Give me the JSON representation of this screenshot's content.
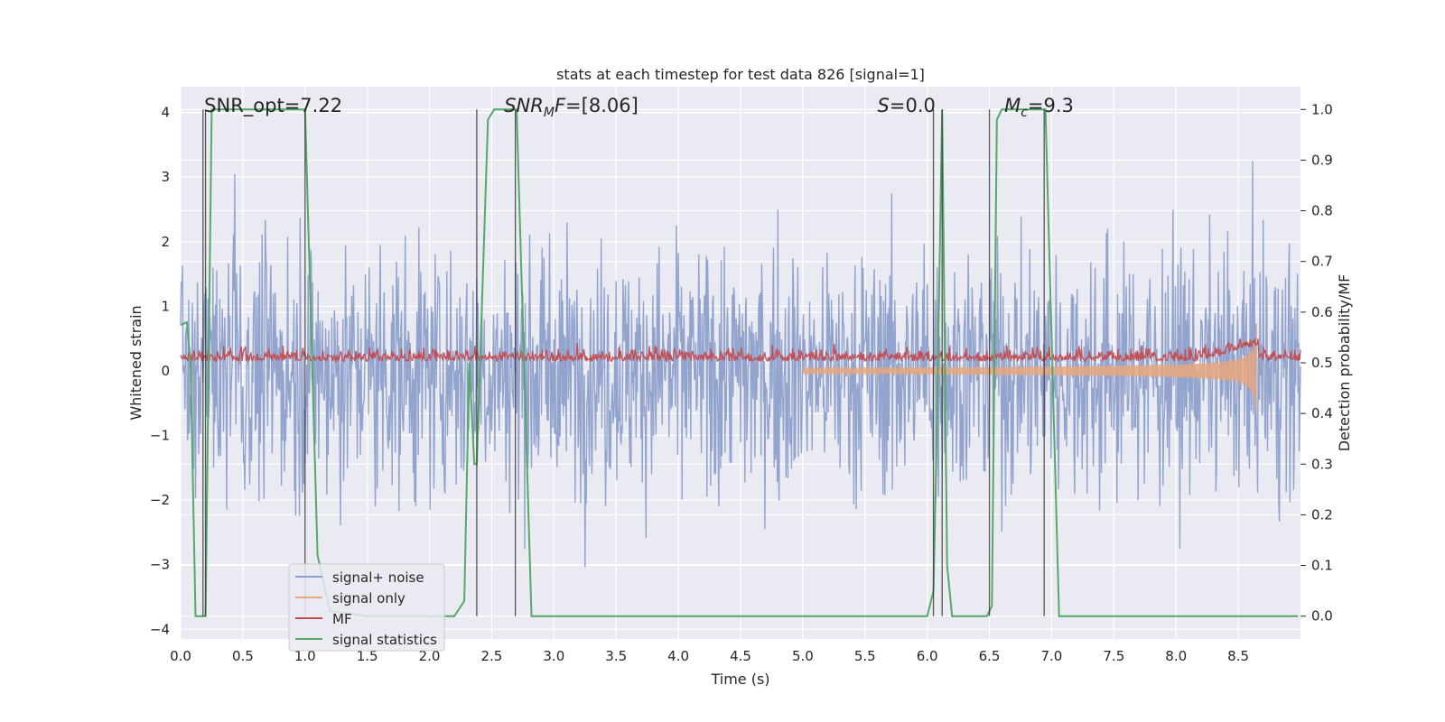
{
  "chart_data": {
    "type": "line",
    "title": "stats at each timestep for test data 826 [signal=1]",
    "xlabel": "Time (s)",
    "ylabel": "Whitened strain",
    "y2label": "Detection probability/MF",
    "xlim": [
      0.0,
      9.0
    ],
    "ylim": [
      -4.15,
      4.4
    ],
    "y2lim": [
      -0.045,
      1.045
    ],
    "xticks": [
      "0.0",
      "0.5",
      "1.0",
      "1.5",
      "2.0",
      "2.5",
      "3.0",
      "3.5",
      "4.0",
      "4.5",
      "5.0",
      "5.5",
      "6.0",
      "6.5",
      "7.0",
      "7.5",
      "8.0",
      "8.5"
    ],
    "yticks": [
      "4",
      "3",
      "2",
      "1",
      "0",
      "−1",
      "−2",
      "−3",
      "−4"
    ],
    "y2ticks": [
      "1.0",
      "0.9",
      "0.8",
      "0.7",
      "0.6",
      "0.5",
      "0.4",
      "0.3",
      "0.2",
      "0.1",
      "0.0"
    ],
    "grid": true,
    "legend_position": "lower-left",
    "annotations": [
      {
        "text": "SNR_opt=7.22",
        "x": 0.19
      },
      {
        "text": "SNR",
        "sub": "M",
        "tail": "F=[8.06]",
        "italic": true,
        "x": 2.6
      },
      {
        "text": "S",
        "tail": "=0.0",
        "italic": true,
        "x": 5.6
      },
      {
        "text": "M",
        "sub": "c",
        "tail": "=9.3",
        "italic": true,
        "x": 6.62
      }
    ],
    "vertical_lines": [
      0.18,
      0.2,
      1.0,
      2.38,
      2.69,
      6.05,
      6.12,
      6.5,
      6.94
    ],
    "series": [
      {
        "name": "signal+ noise",
        "color": "#8da0cb",
        "axis": "left",
        "kind": "noise",
        "amplitude": 1.0
      },
      {
        "name": "signal only",
        "color": "#e8a77c",
        "axis": "left",
        "kind": "chirp",
        "merger_time": 8.65,
        "peak": 1.0
      },
      {
        "name": "MF",
        "color": "#c44e52",
        "axis": "left",
        "kind": "mf",
        "baseline": 0.15
      },
      {
        "name": "signal statistics",
        "color": "#55a868",
        "axis": "right",
        "kind": "step",
        "points": [
          [
            0.0,
            0.575
          ],
          [
            0.05,
            0.58
          ],
          [
            0.08,
            0.5
          ],
          [
            0.12,
            0.0
          ],
          [
            0.2,
            0.0
          ],
          [
            0.25,
            1.0
          ],
          [
            1.0,
            1.0
          ],
          [
            1.1,
            0.12
          ],
          [
            1.2,
            0.01
          ],
          [
            1.5,
            0.0
          ],
          [
            1.8,
            0.0
          ],
          [
            2.2,
            0.0
          ],
          [
            2.28,
            0.03
          ],
          [
            2.32,
            0.5
          ],
          [
            2.36,
            0.3
          ],
          [
            2.38,
            0.3
          ],
          [
            2.47,
            0.98
          ],
          [
            2.52,
            1.0
          ],
          [
            2.7,
            1.0
          ],
          [
            2.82,
            0.0
          ],
          [
            3.0,
            0.0
          ],
          [
            6.0,
            0.0
          ],
          [
            6.05,
            0.05
          ],
          [
            6.08,
            0.4
          ],
          [
            6.12,
            1.0
          ],
          [
            6.16,
            0.1
          ],
          [
            6.2,
            0.0
          ],
          [
            6.48,
            0.0
          ],
          [
            6.52,
            0.02
          ],
          [
            6.56,
            0.98
          ],
          [
            6.6,
            1.0
          ],
          [
            6.95,
            1.0
          ],
          [
            7.06,
            0.0
          ],
          [
            8.98,
            0.0
          ]
        ]
      }
    ]
  },
  "legend": {
    "items": [
      {
        "label": "signal+ noise",
        "color": "#8da0cb"
      },
      {
        "label": "signal only",
        "color": "#e8a77c"
      },
      {
        "label": "MF",
        "color": "#c44e52"
      },
      {
        "label": "signal statistics",
        "color": "#55a868"
      }
    ]
  }
}
